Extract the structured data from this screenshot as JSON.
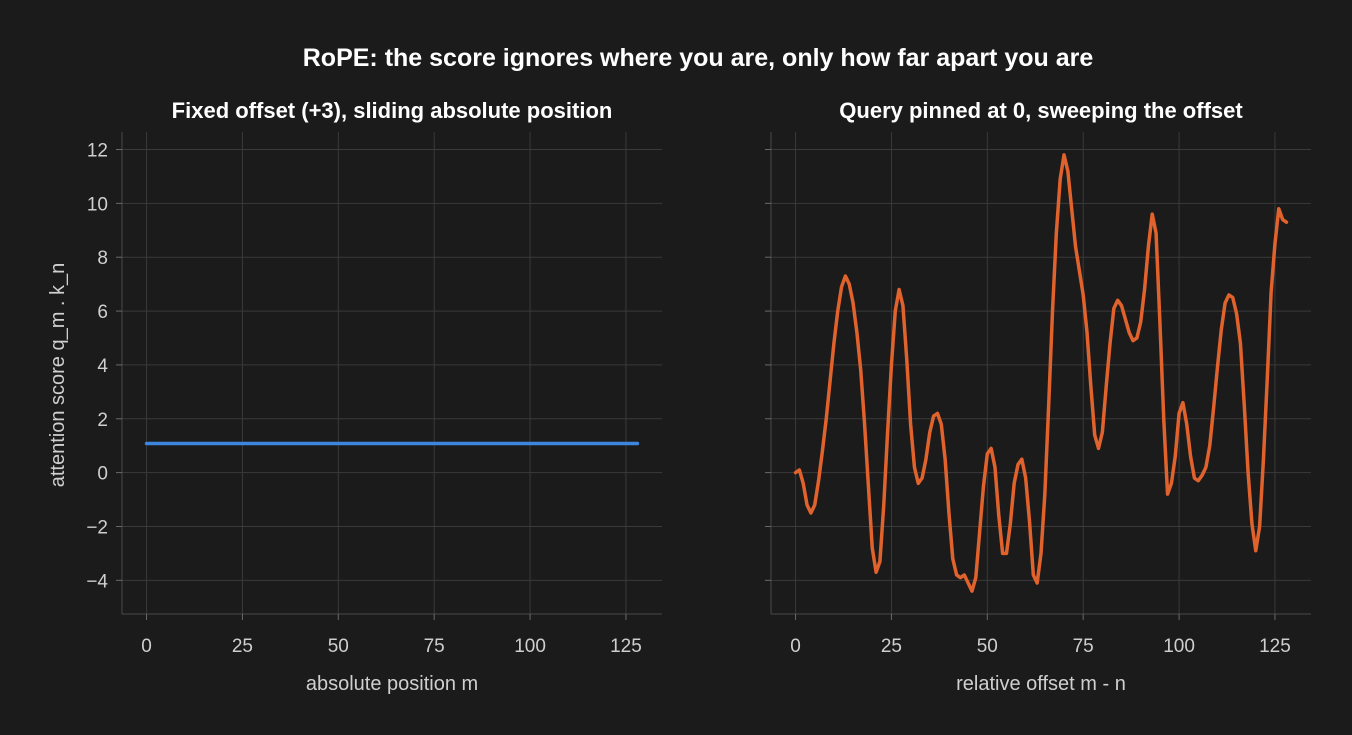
{
  "figure": {
    "title": "RoPE: the score ignores where you are, only how far apart you are"
  },
  "chart_data": [
    {
      "type": "line",
      "title": "Fixed offset (+3), sliding absolute position",
      "xlabel": "absolute position m",
      "ylabel": "attention score  q_m . k_n",
      "xlim": [
        -6.4,
        134.4
      ],
      "ylim": [
        -5.25,
        12.65
      ],
      "xticks": [
        0,
        25,
        50,
        75,
        100,
        125
      ],
      "yticks": [
        -4,
        -2,
        0,
        2,
        4,
        6,
        8,
        10,
        12
      ],
      "ytick_labels": [
        "−4",
        "−2",
        "0",
        "2",
        "4",
        "6",
        "8",
        "10",
        "12"
      ],
      "grid": true,
      "color": "#3d86e0",
      "series": [
        {
          "x": [
            0,
            128
          ],
          "y": [
            1.08,
            1.08
          ]
        }
      ]
    },
    {
      "type": "line",
      "title": "Query pinned at 0, sweeping the offset",
      "xlabel": "relative offset  m - n",
      "ylabel": "",
      "xlim": [
        -6.4,
        134.4
      ],
      "ylim": [
        -5.25,
        12.65
      ],
      "xticks": [
        0,
        25,
        50,
        75,
        100,
        125
      ],
      "yticks": [
        -4,
        -2,
        0,
        2,
        4,
        6,
        8,
        10,
        12
      ],
      "grid": true,
      "color": "#e0622c",
      "series": [
        {
          "x": [
            0,
            1,
            2,
            3,
            4,
            5,
            6,
            7,
            8,
            9,
            10,
            11,
            12,
            13,
            14,
            15,
            16,
            17,
            18,
            19,
            20,
            21,
            22,
            23,
            24,
            25,
            26,
            27,
            28,
            29,
            30,
            31,
            32,
            33,
            34,
            35,
            36,
            37,
            38,
            39,
            40,
            41,
            42,
            43,
            44,
            45,
            46,
            47,
            48,
            49,
            50,
            51,
            52,
            53,
            54,
            55,
            56,
            57,
            58,
            59,
            60,
            61,
            62,
            63,
            64,
            65,
            66,
            67,
            68,
            69,
            70,
            71,
            72,
            73,
            74,
            75,
            76,
            77,
            78,
            79,
            80,
            81,
            82,
            83,
            84,
            85,
            86,
            87,
            88,
            89,
            90,
            91,
            92,
            93,
            94,
            95,
            96,
            97,
            98,
            99,
            100,
            101,
            102,
            103,
            104,
            105,
            106,
            107,
            108,
            109,
            110,
            111,
            112,
            113,
            114,
            115,
            116,
            117,
            118,
            119,
            120,
            121,
            122,
            123,
            124,
            125,
            126,
            127,
            128
          ],
          "y": [
            0.0,
            0.1,
            -0.4,
            -1.2,
            -1.5,
            -1.2,
            -0.3,
            0.8,
            2.0,
            3.4,
            4.8,
            6.0,
            6.9,
            7.3,
            7.0,
            6.3,
            5.2,
            3.8,
            1.8,
            -0.5,
            -2.8,
            -3.7,
            -3.3,
            -1.2,
            1.5,
            4.0,
            6.0,
            6.8,
            6.2,
            4.2,
            1.8,
            0.2,
            -0.4,
            -0.2,
            0.5,
            1.5,
            2.1,
            2.2,
            1.8,
            0.5,
            -1.5,
            -3.2,
            -3.8,
            -3.9,
            -3.8,
            -4.1,
            -4.4,
            -3.9,
            -2.2,
            -0.5,
            0.7,
            0.9,
            0.2,
            -1.6,
            -3.0,
            -3.0,
            -1.9,
            -0.4,
            0.3,
            0.5,
            -0.2,
            -1.8,
            -3.8,
            -4.1,
            -3.0,
            -0.8,
            2.5,
            6.0,
            8.9,
            10.9,
            11.8,
            11.2,
            9.8,
            8.4,
            7.5,
            6.6,
            5.2,
            3.2,
            1.4,
            0.9,
            1.5,
            3.2,
            4.8,
            6.1,
            6.4,
            6.2,
            5.7,
            5.2,
            4.9,
            5.0,
            5.6,
            6.8,
            8.4,
            9.6,
            8.9,
            5.6,
            2.0,
            -0.8,
            -0.4,
            0.6,
            2.2,
            2.6,
            1.8,
            0.6,
            -0.2,
            -0.3,
            -0.1,
            0.2,
            1.0,
            2.4,
            3.9,
            5.3,
            6.3,
            6.6,
            6.5,
            5.9,
            4.8,
            2.5,
            0.0,
            -1.9,
            -2.9,
            -2.0,
            0.5,
            3.5,
            6.7,
            8.5,
            9.8,
            9.4,
            9.3
          ]
        }
      ]
    }
  ]
}
